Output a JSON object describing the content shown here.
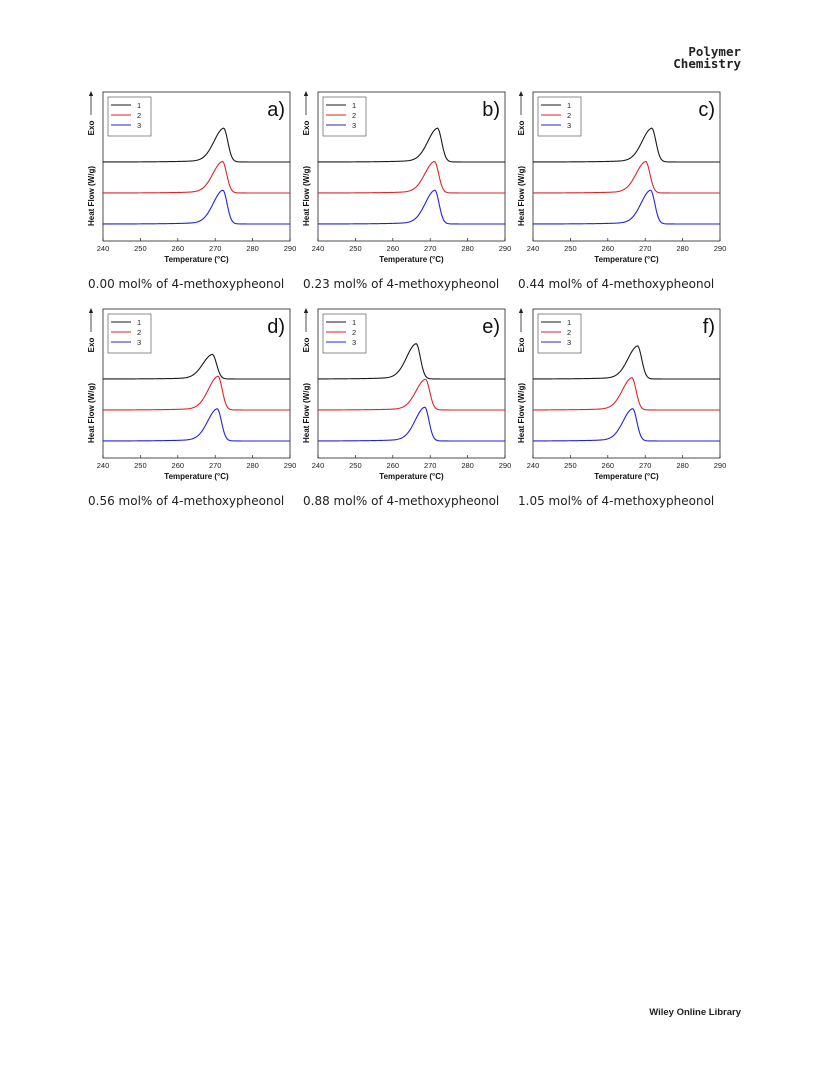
{
  "header": {
    "journal_line1": "Polymer",
    "journal_line2": "Chemistry"
  },
  "footer": {
    "brand": "Wiley Online Library"
  },
  "colors": {
    "1": "#1a1a1a",
    "2": "#d9262b",
    "3": "#2323d6"
  },
  "chart_data": [
    {
      "type": "line",
      "panel_label": "a)",
      "caption": "0.00 mol% of 4-methoxypheonol",
      "xlabel": "Temperature (°C)",
      "ylabel": "Heat Flow (W/g)",
      "direction_label": "Exo",
      "xlim": [
        240,
        290
      ],
      "xticks": [
        240,
        250,
        260,
        270,
        280,
        290
      ],
      "legend": [
        "1",
        "2",
        "3"
      ],
      "legend_position": "top-left",
      "series": [
        {
          "name": "1",
          "color": "#1a1a1a",
          "peak_temp": 272.3,
          "peak_height": 0.44
        },
        {
          "name": "2",
          "color": "#d9262b",
          "peak_temp": 272.0,
          "peak_height": 0.41
        },
        {
          "name": "3",
          "color": "#2323d6",
          "peak_temp": 272.1,
          "peak_height": 0.44
        }
      ]
    },
    {
      "type": "line",
      "panel_label": "b)",
      "caption": "0.23 mol% of 4-methoxypheonol",
      "xlabel": "Temperature (°C)",
      "ylabel": "Heat Flow (W/g)",
      "direction_label": "Exo",
      "xlim": [
        240,
        290
      ],
      "xticks": [
        240,
        250,
        260,
        270,
        280,
        290
      ],
      "legend": [
        "1",
        "2",
        "3"
      ],
      "legend_position": "top-left",
      "series": [
        {
          "name": "1",
          "color": "#1a1a1a",
          "peak_temp": 272.0,
          "peak_height": 0.44
        },
        {
          "name": "2",
          "color": "#d9262b",
          "peak_temp": 271.2,
          "peak_height": 0.41
        },
        {
          "name": "3",
          "color": "#2323d6",
          "peak_temp": 271.3,
          "peak_height": 0.44
        }
      ]
    },
    {
      "type": "line",
      "panel_label": "c)",
      "caption": "0.44 mol% of 4-methoxypheonol",
      "xlabel": "Temperature (°C)",
      "ylabel": "Heat Flow (W/g)",
      "direction_label": "Exo",
      "xlim": [
        240,
        290
      ],
      "xticks": [
        240,
        250,
        260,
        270,
        280,
        290
      ],
      "legend": [
        "1",
        "2",
        "3"
      ],
      "legend_position": "top-left",
      "series": [
        {
          "name": "1",
          "color": "#1a1a1a",
          "peak_temp": 271.8,
          "peak_height": 0.44
        },
        {
          "name": "2",
          "color": "#d9262b",
          "peak_temp": 270.2,
          "peak_height": 0.41
        },
        {
          "name": "3",
          "color": "#2323d6",
          "peak_temp": 271.5,
          "peak_height": 0.44
        }
      ]
    },
    {
      "type": "line",
      "panel_label": "d)",
      "caption": "0.56 mol% of 4-methoxypheonol",
      "xlabel": "Temperature (°C)",
      "ylabel": "Heat Flow (W/g)",
      "direction_label": "Exo",
      "xlim": [
        240,
        290
      ],
      "xticks": [
        240,
        250,
        260,
        270,
        280,
        290
      ],
      "legend": [
        "1",
        "2",
        "3"
      ],
      "legend_position": "top-left",
      "series": [
        {
          "name": "1",
          "color": "#1a1a1a",
          "peak_temp": 269.3,
          "peak_height": 0.32
        },
        {
          "name": "2",
          "color": "#d9262b",
          "peak_temp": 270.8,
          "peak_height": 0.44
        },
        {
          "name": "3",
          "color": "#2323d6",
          "peak_temp": 270.6,
          "peak_height": 0.42
        }
      ]
    },
    {
      "type": "line",
      "panel_label": "e)",
      "caption": "0.88 mol% of 4-methoxypheonol",
      "xlabel": "Temperature (°C)",
      "ylabel": "Heat Flow (W/g)",
      "direction_label": "Exo",
      "xlim": [
        240,
        290
      ],
      "xticks": [
        240,
        250,
        260,
        270,
        280,
        290
      ],
      "legend": [
        "1",
        "2",
        "3"
      ],
      "legend_position": "top-left",
      "series": [
        {
          "name": "1",
          "color": "#1a1a1a",
          "peak_temp": 266.3,
          "peak_height": 0.46
        },
        {
          "name": "2",
          "color": "#d9262b",
          "peak_temp": 268.8,
          "peak_height": 0.4
        },
        {
          "name": "3",
          "color": "#2323d6",
          "peak_temp": 268.6,
          "peak_height": 0.44
        }
      ]
    },
    {
      "type": "line",
      "panel_label": "f)",
      "caption": "1.05 mol% of 4-methoxypheonol",
      "xlabel": "Temperature (°C)",
      "ylabel": "Heat Flow (W/g)",
      "direction_label": "Exo",
      "xlim": [
        240,
        290
      ],
      "xticks": [
        240,
        250,
        260,
        270,
        280,
        290
      ],
      "legend": [
        "1",
        "2",
        "3"
      ],
      "legend_position": "top-left",
      "series": [
        {
          "name": "1",
          "color": "#1a1a1a",
          "peak_temp": 268.0,
          "peak_height": 0.43
        },
        {
          "name": "2",
          "color": "#d9262b",
          "peak_temp": 266.5,
          "peak_height": 0.42
        },
        {
          "name": "3",
          "color": "#2323d6",
          "peak_temp": 266.7,
          "peak_height": 0.42
        }
      ]
    }
  ]
}
